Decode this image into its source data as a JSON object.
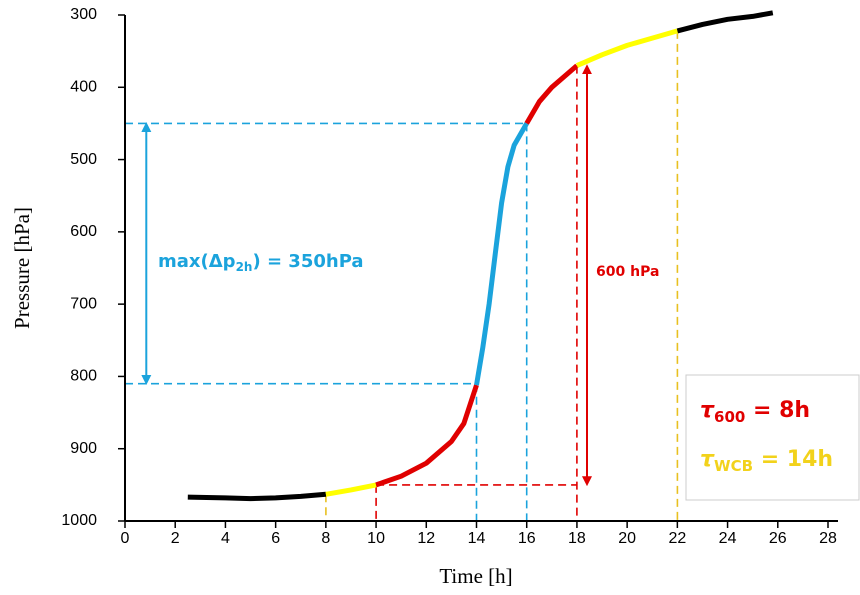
{
  "chart_data": {
    "type": "line",
    "xlabel": "Time [h]",
    "ylabel": "Pressure [hPa]",
    "xlim": [
      0,
      28
    ],
    "xticks": [
      0,
      2,
      4,
      6,
      8,
      10,
      12,
      14,
      16,
      18,
      20,
      22,
      24,
      26,
      28
    ],
    "ylim": [
      1000,
      300
    ],
    "yticks": [
      300,
      400,
      500,
      600,
      700,
      800,
      900,
      1000
    ],
    "series": [
      {
        "color": "#000000",
        "x": [
          2.5,
          4,
          5,
          6,
          7,
          8
        ],
        "values": [
          967,
          968,
          969,
          968,
          966,
          963
        ]
      },
      {
        "color": "#ffff00",
        "x": [
          8,
          9,
          10
        ],
        "values": [
          963,
          957,
          950
        ]
      },
      {
        "color": "#e00000",
        "x": [
          10,
          11,
          12,
          13,
          13.5,
          14
        ],
        "values": [
          950,
          938,
          920,
          890,
          865,
          812
        ]
      },
      {
        "color": "#1ba3dc",
        "x": [
          14,
          14.25,
          14.5,
          14.75,
          15,
          15.25,
          15.5,
          16
        ],
        "values": [
          812,
          760,
          700,
          630,
          560,
          510,
          480,
          450
        ]
      },
      {
        "color": "#e00000",
        "x": [
          16,
          16.5,
          17,
          18
        ],
        "values": [
          450,
          420,
          400,
          370
        ]
      },
      {
        "color": "#ffff00",
        "x": [
          18,
          19,
          20,
          21,
          22
        ],
        "values": [
          370,
          355,
          342,
          332,
          322
        ]
      },
      {
        "color": "#000000",
        "x": [
          22,
          23,
          24,
          25,
          25.8
        ],
        "values": [
          322,
          313,
          306,
          302,
          297
        ]
      }
    ],
    "guides": [
      {
        "color": "#1ba3dc",
        "x": [
          0,
          16
        ],
        "values": [
          450,
          450
        ]
      },
      {
        "color": "#1ba3dc",
        "x": [
          0,
          14
        ],
        "values": [
          810,
          810
        ]
      },
      {
        "color": "#1ba3dc",
        "x": [
          14,
          14
        ],
        "values": [
          810,
          1000
        ]
      },
      {
        "color": "#1ba3dc",
        "x": [
          16,
          16
        ],
        "values": [
          450,
          1000
        ]
      },
      {
        "color": "#e00000",
        "x": [
          10,
          10
        ],
        "values": [
          950,
          1000
        ]
      },
      {
        "color": "#e00000",
        "x": [
          18,
          18
        ],
        "values": [
          370,
          1000
        ]
      },
      {
        "color": "#e00000",
        "x": [
          10,
          18
        ],
        "values": [
          950,
          950
        ]
      },
      {
        "color": "#e8c020",
        "x": [
          8,
          8
        ],
        "values": [
          963,
          1000
        ]
      },
      {
        "color": "#e8c020",
        "x": [
          22,
          22
        ],
        "values": [
          322,
          1000
        ]
      }
    ],
    "arrows": [
      {
        "color": "#1ba3dc",
        "x": [
          0.85,
          0.85
        ],
        "values": [
          455,
          805
        ]
      },
      {
        "color": "#e00000",
        "x": [
          18.4,
          18.4
        ],
        "values": [
          375,
          945
        ]
      }
    ],
    "annotations": {
      "dp": [
        "max(Δp",
        "2h",
        ") = 350hPa"
      ],
      "red": "600 hPa",
      "tau600": [
        "τ",
        "600",
        " = 8h"
      ],
      "tauwcb": [
        "τ",
        "WCB",
        " = 14h"
      ]
    }
  }
}
